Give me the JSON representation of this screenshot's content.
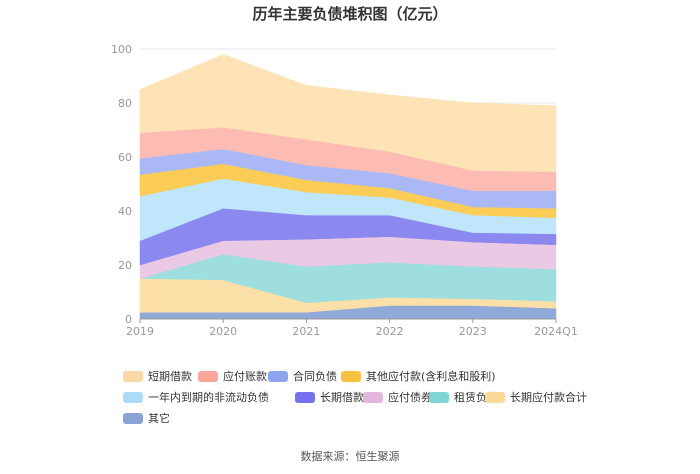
{
  "chart_data": {
    "type": "area",
    "stacked": true,
    "title": "历年主要负债堆积图（亿元）",
    "categories": [
      "2019",
      "2020",
      "2021",
      "2022",
      "2023",
      "2024Q1"
    ],
    "ylim": [
      0,
      100
    ],
    "yticks": [
      "0",
      "20",
      "40",
      "60",
      "80",
      "100"
    ],
    "grid": true,
    "legend_position": "bottom",
    "series": [
      {
        "name": "其它",
        "color": "#8fa9d8",
        "values": [
          2.5,
          2.5,
          2.5,
          5.0,
          5.0,
          4.0
        ]
      },
      {
        "name": "长期应付款合计",
        "color": "#fde0a8",
        "values": [
          12.5,
          12.0,
          3.5,
          3.0,
          2.5,
          2.5
        ]
      },
      {
        "name": "租赁负债",
        "color": "#9edede",
        "values": [
          0.0,
          9.5,
          13.5,
          13.0,
          12.0,
          12.0
        ]
      },
      {
        "name": "应付债券",
        "color": "#eac9e4",
        "values": [
          5.0,
          5.0,
          10.0,
          9.5,
          9.0,
          9.0
        ]
      },
      {
        "name": "长期借款",
        "color": "#8b88f0",
        "values": [
          9.0,
          12.0,
          9.0,
          8.0,
          3.5,
          4.0
        ]
      },
      {
        "name": "一年内到期的非流动负债",
        "color": "#bfe6fb",
        "values": [
          16.5,
          11.0,
          8.5,
          6.5,
          6.5,
          6.0
        ]
      },
      {
        "name": "其他应付款(含利息和股利)",
        "color": "#fbcd56",
        "values": [
          8.0,
          5.5,
          4.5,
          3.5,
          3.0,
          3.5
        ]
      },
      {
        "name": "合同负债",
        "color": "#aab9f5",
        "values": [
          6.0,
          5.5,
          5.5,
          5.5,
          6.0,
          6.5
        ]
      },
      {
        "name": "应付账款",
        "color": "#fcbcb4",
        "values": [
          9.5,
          8.0,
          9.5,
          8.0,
          7.5,
          7.0
        ]
      },
      {
        "name": "短期借款",
        "color": "#fde3b5",
        "values": [
          16.0,
          27.0,
          20.0,
          21.0,
          25.0,
          24.5
        ]
      }
    ],
    "legend": [
      {
        "label": "短期借款",
        "color": "#fbd9a4"
      },
      {
        "label": "应付账款",
        "color": "#f9a69a"
      },
      {
        "label": "合同负债",
        "color": "#8ea4ef"
      },
      {
        "label": "其他应付款(含利息和股利)",
        "color": "#fbc142"
      },
      {
        "label": "一年内到期的非流动负债",
        "color": "#abdcf7"
      },
      {
        "label": "长期借款",
        "color": "#7770ef"
      },
      {
        "label": "应付债券",
        "color": "#e4b6dc"
      },
      {
        "label": "租赁负债",
        "color": "#7fd4d4"
      },
      {
        "label": "长期应付款合计",
        "color": "#fcd899"
      },
      {
        "label": "其它",
        "color": "#8aa3d6"
      }
    ]
  },
  "source_text": "数据来源：恒生聚源"
}
